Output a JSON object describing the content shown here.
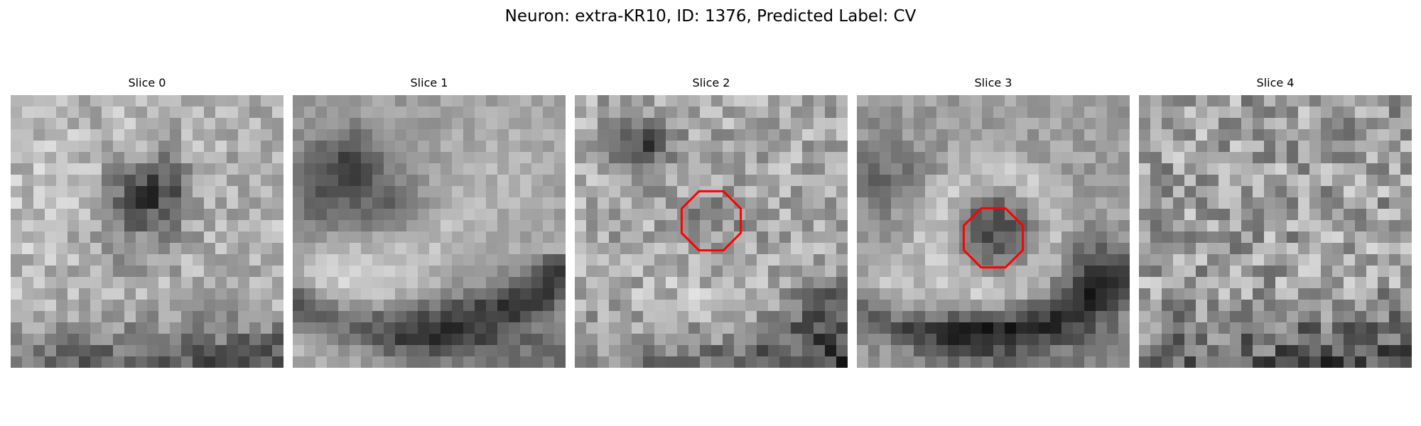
{
  "figure": {
    "title": "Neuron: extra-KR10, ID: 1376, Predicted Label: CV"
  },
  "slices": [
    {
      "title": "Slice 0",
      "has_roi": false
    },
    {
      "title": "Slice 1",
      "has_roi": false
    },
    {
      "title": "Slice 2",
      "has_roi": true
    },
    {
      "title": "Slice 3",
      "has_roi": true
    },
    {
      "title": "Slice 4",
      "has_roi": false
    }
  ],
  "colors": {
    "roi_outline": "#ff0000",
    "colormap": "grayscale"
  }
}
